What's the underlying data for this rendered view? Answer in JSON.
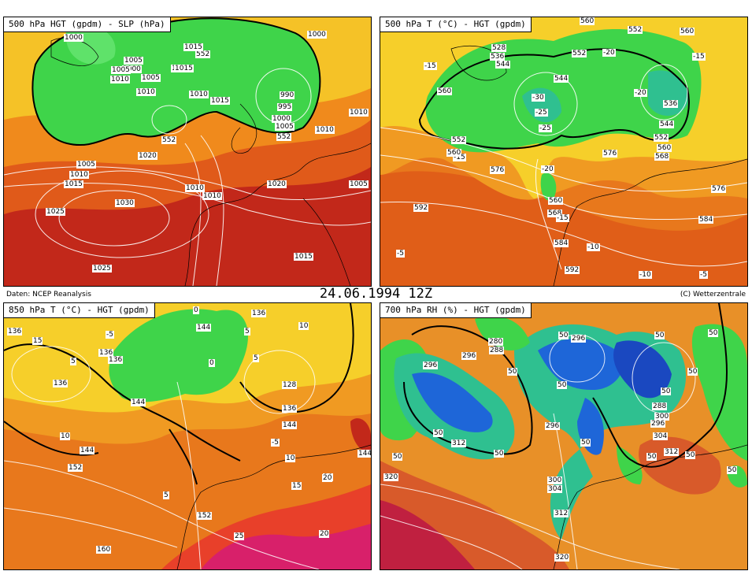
{
  "header": {
    "source": "Daten: NCEP Reanalysis",
    "datetime": "24.06.1994  12Z",
    "copyright": "(C) Wetterzentrale"
  },
  "panels": [
    {
      "title": "500 hPa HGT (gpdm) - SLP (hPa)",
      "labels": [
        "1000",
        "1005",
        "1000",
        "1005",
        "1010",
        "1015",
        "552",
        "1015",
        "1000",
        "1005",
        "1015",
        "1010",
        "1010",
        "1015",
        "990",
        "995",
        "1000",
        "1005",
        "552",
        "1010",
        "1010",
        "552",
        "1005",
        "1010",
        "1015",
        "1020",
        "1010",
        "1010",
        "1020",
        "1005",
        "1030",
        "1025",
        "1015",
        "1025"
      ]
    },
    {
      "title": "500 hPa T (°C) - HGT (gpdm)",
      "labels": [
        "560",
        "552",
        "560",
        "528",
        "536",
        "544",
        "-15",
        "552",
        "-20",
        "544",
        "-15",
        "560",
        "-30",
        "-20",
        "536",
        "-25",
        "-25",
        "552",
        "544",
        "552",
        "560",
        "-15",
        "560",
        "576",
        "-20",
        "568",
        "576",
        "560",
        "568",
        "576",
        "-15",
        "592",
        "584",
        "584",
        "-10",
        "-5",
        "592",
        "-10",
        "-5"
      ]
    },
    {
      "title": "850 hPa T (°C) - HGT (gpdm)",
      "labels": [
        "0",
        "136",
        "144",
        "5",
        "15",
        "136",
        "10",
        "-5",
        "5",
        "136",
        "0",
        "5",
        "136",
        "128",
        "144",
        "136",
        "144",
        "136",
        "10",
        "144",
        "-5",
        "10",
        "144",
        "152",
        "10",
        "15",
        "5",
        "20",
        "152",
        "160",
        "25",
        "20"
      ]
    },
    {
      "title": "700 hPa RH (%) - HGT (gpdm)",
      "labels": [
        "280",
        "288",
        "296",
        "296",
        "50",
        "50",
        "296",
        "50",
        "50",
        "50",
        "50",
        "50",
        "296",
        "288",
        "50",
        "300",
        "296",
        "304",
        "50",
        "50",
        "312",
        "50",
        "312",
        "50",
        "300",
        "304",
        "320",
        "50",
        "312",
        "320",
        "50"
      ]
    }
  ]
}
